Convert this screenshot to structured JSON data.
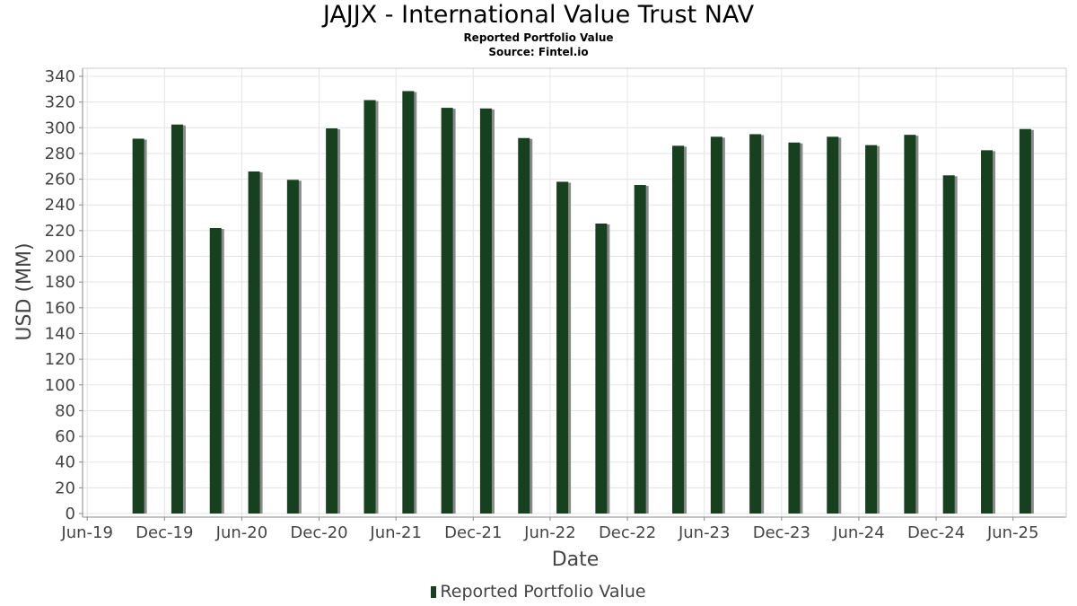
{
  "title": "JAJJX - International Value Trust NAV",
  "subtitle": "Reported Portfolio Value",
  "source": "Source: Fintel.io",
  "legend_label": "Reported Portfolio Value",
  "colors": {
    "bar": "#17401f",
    "shadow": "#8a8a8a",
    "grid": "#e3e3e3",
    "axis": "#888888"
  },
  "chart_data": {
    "type": "bar",
    "title": "JAJJX - International Value Trust NAV",
    "subtitle": "Reported Portfolio Value",
    "xlabel": "Date",
    "ylabel": "USD (MM)",
    "ylim": [
      0,
      345
    ],
    "xlim": [
      "2019-05-21",
      "2025-10-05"
    ],
    "yticks": [
      0,
      20,
      40,
      60,
      80,
      100,
      120,
      140,
      160,
      180,
      200,
      220,
      240,
      260,
      280,
      300,
      320,
      340
    ],
    "xticks": [
      {
        "date": "2019-06-01",
        "label": "Jun-19"
      },
      {
        "date": "2019-12-01",
        "label": "Dec-19"
      },
      {
        "date": "2020-06-01",
        "label": "Jun-20"
      },
      {
        "date": "2020-12-01",
        "label": "Dec-20"
      },
      {
        "date": "2021-06-01",
        "label": "Jun-21"
      },
      {
        "date": "2021-12-01",
        "label": "Dec-21"
      },
      {
        "date": "2022-06-01",
        "label": "Jun-22"
      },
      {
        "date": "2022-12-01",
        "label": "Dec-22"
      },
      {
        "date": "2023-06-01",
        "label": "Jun-23"
      },
      {
        "date": "2023-12-01",
        "label": "Dec-23"
      },
      {
        "date": "2024-06-01",
        "label": "Jun-24"
      },
      {
        "date": "2024-12-01",
        "label": "Dec-24"
      },
      {
        "date": "2025-06-01",
        "label": "Jun-25"
      }
    ],
    "grid": true,
    "legend": "bottom-center",
    "series": [
      {
        "name": "Reported Portfolio Value",
        "points": [
          {
            "x": "2019-09-30",
            "y": 291.5
          },
          {
            "x": "2019-12-31",
            "y": 302.5
          },
          {
            "x": "2020-03-31",
            "y": 222.0
          },
          {
            "x": "2020-06-30",
            "y": 266.0
          },
          {
            "x": "2020-09-30",
            "y": 259.5
          },
          {
            "x": "2020-12-31",
            "y": 299.5
          },
          {
            "x": "2021-03-31",
            "y": 321.5
          },
          {
            "x": "2021-06-30",
            "y": 328.5
          },
          {
            "x": "2021-09-30",
            "y": 315.5
          },
          {
            "x": "2021-12-31",
            "y": 315.0
          },
          {
            "x": "2022-03-31",
            "y": 292.0
          },
          {
            "x": "2022-06-30",
            "y": 258.0
          },
          {
            "x": "2022-09-30",
            "y": 225.5
          },
          {
            "x": "2022-12-31",
            "y": 255.5
          },
          {
            "x": "2023-03-31",
            "y": 286.0
          },
          {
            "x": "2023-06-30",
            "y": 293.0
          },
          {
            "x": "2023-09-30",
            "y": 295.0
          },
          {
            "x": "2023-12-31",
            "y": 288.5
          },
          {
            "x": "2024-03-31",
            "y": 293.0
          },
          {
            "x": "2024-06-30",
            "y": 286.5
          },
          {
            "x": "2024-09-30",
            "y": 294.5
          },
          {
            "x": "2024-12-31",
            "y": 263.0
          },
          {
            "x": "2025-03-31",
            "y": 282.5
          },
          {
            "x": "2025-06-30",
            "y": 299.0
          }
        ]
      }
    ]
  }
}
